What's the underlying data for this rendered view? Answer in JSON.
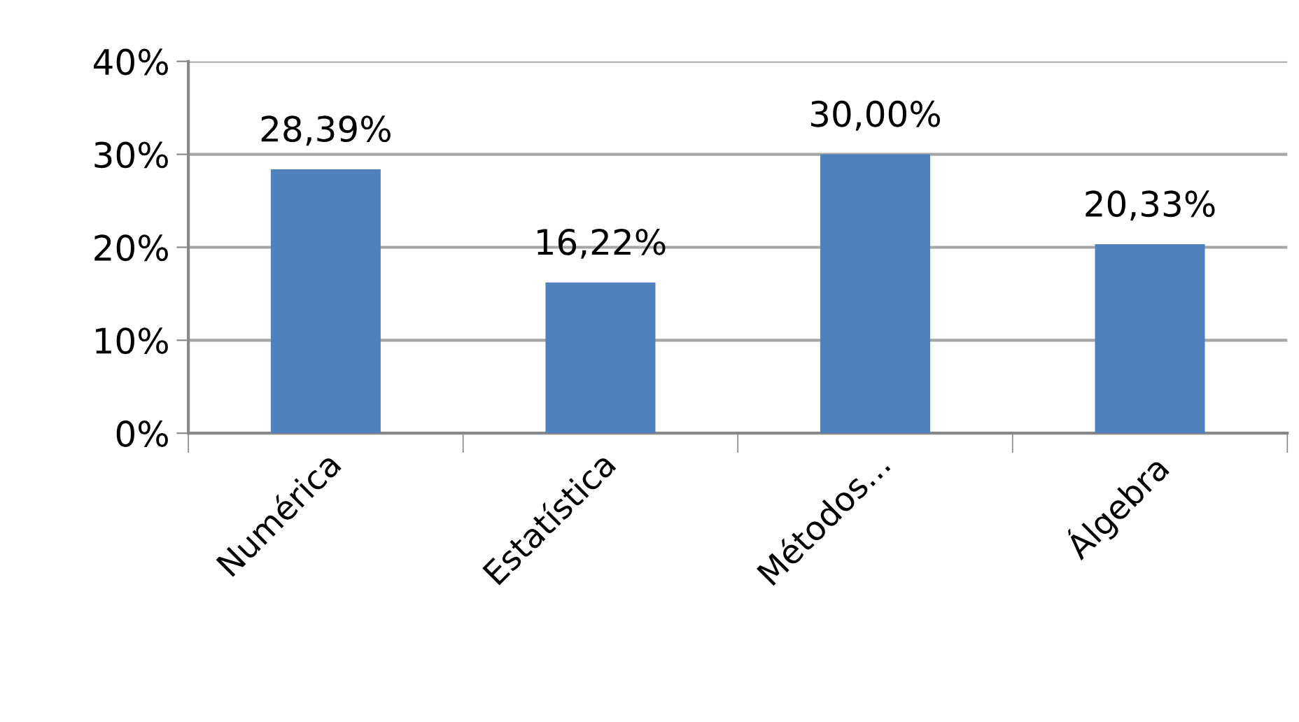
{
  "chart_data": {
    "type": "bar",
    "categories": [
      "Numérica",
      "Estatística",
      "Métodos...",
      "Álgebra"
    ],
    "values": [
      28.39,
      16.22,
      30.0,
      20.33
    ],
    "value_labels": [
      "28,39%",
      "16,22%",
      "30,00%",
      "20,33%"
    ],
    "color": "#4f81bd",
    "ylim": [
      0,
      40
    ],
    "yticks": [
      {
        "value": 0,
        "label": "0%"
      },
      {
        "value": 10,
        "label": "10%"
      },
      {
        "value": 20,
        "label": "20%"
      },
      {
        "value": 30,
        "label": "30%"
      },
      {
        "value": 40,
        "label": "40%"
      }
    ],
    "grid": "y",
    "legend": false
  }
}
